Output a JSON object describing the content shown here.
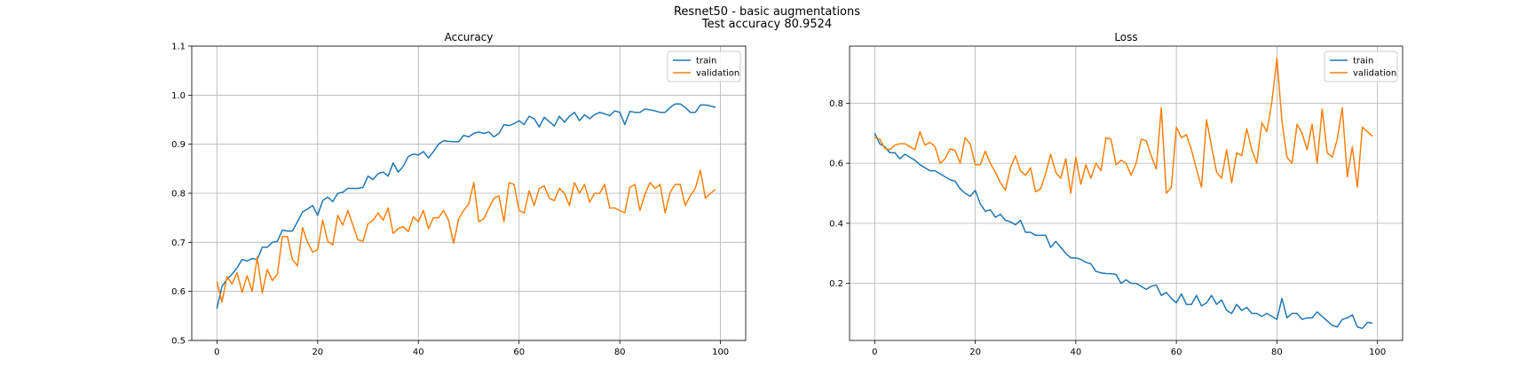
{
  "figure": {
    "suptitle_line1": "Resnet50 - basic augmentations",
    "suptitle_line2": "Test accuracy 80.9524"
  },
  "colors": {
    "train": "#1f77b4",
    "validation": "#ff7f0e",
    "grid": "#b0b0b0"
  },
  "chart_data": [
    {
      "type": "line",
      "title": "Accuracy",
      "xlabel": "",
      "ylabel": "",
      "xlim": [
        -5,
        105
      ],
      "ylim": [
        0.5,
        1.1
      ],
      "xticks": [
        0,
        20,
        40,
        60,
        80,
        100
      ],
      "yticks": [
        0.5,
        0.6,
        0.7,
        0.8,
        0.9,
        1.0,
        1.1
      ],
      "ytick_labels": [
        "0.5",
        "0.6",
        "0.7",
        "0.8",
        "0.9",
        "1.0",
        "1.1"
      ],
      "grid": true,
      "legend": "top-right",
      "x": [
        0,
        1,
        2,
        3,
        4,
        5,
        6,
        7,
        8,
        9,
        10,
        11,
        12,
        13,
        14,
        15,
        16,
        17,
        18,
        19,
        20,
        21,
        22,
        23,
        24,
        25,
        26,
        27,
        28,
        29,
        30,
        31,
        32,
        33,
        34,
        35,
        36,
        37,
        38,
        39,
        40,
        41,
        42,
        43,
        44,
        45,
        46,
        47,
        48,
        49,
        50,
        51,
        52,
        53,
        54,
        55,
        56,
        57,
        58,
        59,
        60,
        61,
        62,
        63,
        64,
        65,
        66,
        67,
        68,
        69,
        70,
        71,
        72,
        73,
        74,
        75,
        76,
        77,
        78,
        79,
        80,
        81,
        82,
        83,
        84,
        85,
        86,
        87,
        88,
        89,
        90,
        91,
        92,
        93,
        94,
        95,
        96,
        97,
        98,
        99
      ],
      "series": [
        {
          "name": "train",
          "values": [
            0.565,
            0.61,
            0.625,
            0.635,
            0.648,
            0.665,
            0.662,
            0.667,
            0.665,
            0.69,
            0.69,
            0.7,
            0.702,
            0.725,
            0.723,
            0.723,
            0.742,
            0.762,
            0.768,
            0.775,
            0.755,
            0.785,
            0.792,
            0.783,
            0.8,
            0.802,
            0.81,
            0.81,
            0.81,
            0.812,
            0.835,
            0.828,
            0.84,
            0.843,
            0.835,
            0.862,
            0.843,
            0.855,
            0.875,
            0.88,
            0.878,
            0.885,
            0.872,
            0.885,
            0.9,
            0.907,
            0.906,
            0.905,
            0.905,
            0.918,
            0.915,
            0.922,
            0.925,
            0.922,
            0.925,
            0.915,
            0.922,
            0.94,
            0.938,
            0.942,
            0.948,
            0.94,
            0.957,
            0.952,
            0.935,
            0.955,
            0.946,
            0.937,
            0.957,
            0.945,
            0.957,
            0.965,
            0.948,
            0.96,
            0.952,
            0.96,
            0.965,
            0.962,
            0.958,
            0.968,
            0.965,
            0.94,
            0.967,
            0.965,
            0.965,
            0.972,
            0.97,
            0.968,
            0.965,
            0.965,
            0.975,
            0.982,
            0.982,
            0.975,
            0.965,
            0.965,
            0.98,
            0.98,
            0.978,
            0.975
          ]
        },
        {
          "name": "validation",
          "values": [
            0.62,
            0.578,
            0.63,
            0.615,
            0.638,
            0.598,
            0.632,
            0.6,
            0.67,
            0.597,
            0.645,
            0.622,
            0.635,
            0.712,
            0.712,
            0.665,
            0.652,
            0.73,
            0.7,
            0.68,
            0.685,
            0.745,
            0.702,
            0.695,
            0.755,
            0.735,
            0.765,
            0.735,
            0.705,
            0.702,
            0.738,
            0.745,
            0.76,
            0.745,
            0.77,
            0.718,
            0.728,
            0.732,
            0.722,
            0.752,
            0.742,
            0.765,
            0.728,
            0.75,
            0.75,
            0.765,
            0.745,
            0.698,
            0.748,
            0.765,
            0.778,
            0.822,
            0.742,
            0.748,
            0.77,
            0.79,
            0.795,
            0.742,
            0.822,
            0.818,
            0.765,
            0.76,
            0.805,
            0.775,
            0.81,
            0.815,
            0.79,
            0.785,
            0.81,
            0.8,
            0.775,
            0.822,
            0.8,
            0.818,
            0.782,
            0.8,
            0.8,
            0.818,
            0.77,
            0.77,
            0.765,
            0.76,
            0.812,
            0.818,
            0.765,
            0.798,
            0.822,
            0.81,
            0.818,
            0.76,
            0.802,
            0.818,
            0.818,
            0.775,
            0.795,
            0.81,
            0.847,
            0.79,
            0.8,
            0.808
          ]
        }
      ]
    },
    {
      "type": "line",
      "title": "Loss",
      "xlabel": "",
      "ylabel": "",
      "xlim": [
        -5,
        105
      ],
      "ylim": [
        0.01,
        0.99
      ],
      "xticks": [
        0,
        20,
        40,
        60,
        80,
        100
      ],
      "yticks": [
        0.2,
        0.4,
        0.6,
        0.8
      ],
      "ytick_labels": [
        "0.2",
        "0.4",
        "0.6",
        "0.8"
      ],
      "grid": true,
      "legend": "top-right",
      "x": [
        0,
        1,
        2,
        3,
        4,
        5,
        6,
        7,
        8,
        9,
        10,
        11,
        12,
        13,
        14,
        15,
        16,
        17,
        18,
        19,
        20,
        21,
        22,
        23,
        24,
        25,
        26,
        27,
        28,
        29,
        30,
        31,
        32,
        33,
        34,
        35,
        36,
        37,
        38,
        39,
        40,
        41,
        42,
        43,
        44,
        45,
        46,
        47,
        48,
        49,
        50,
        51,
        52,
        53,
        54,
        55,
        56,
        57,
        58,
        59,
        60,
        61,
        62,
        63,
        64,
        65,
        66,
        67,
        68,
        69,
        70,
        71,
        72,
        73,
        74,
        75,
        76,
        77,
        78,
        79,
        80,
        81,
        82,
        83,
        84,
        85,
        86,
        87,
        88,
        89,
        90,
        91,
        92,
        93,
        94,
        95,
        96,
        97,
        98,
        99
      ],
      "series": [
        {
          "name": "train",
          "values": [
            0.7,
            0.665,
            0.655,
            0.635,
            0.635,
            0.615,
            0.63,
            0.62,
            0.61,
            0.595,
            0.585,
            0.575,
            0.575,
            0.565,
            0.555,
            0.545,
            0.54,
            0.515,
            0.5,
            0.49,
            0.51,
            0.465,
            0.44,
            0.445,
            0.42,
            0.43,
            0.41,
            0.405,
            0.395,
            0.41,
            0.37,
            0.37,
            0.36,
            0.36,
            0.36,
            0.32,
            0.34,
            0.32,
            0.3,
            0.285,
            0.285,
            0.28,
            0.27,
            0.265,
            0.24,
            0.235,
            0.233,
            0.232,
            0.23,
            0.2,
            0.212,
            0.2,
            0.2,
            0.19,
            0.18,
            0.19,
            0.195,
            0.16,
            0.17,
            0.15,
            0.135,
            0.165,
            0.13,
            0.13,
            0.16,
            0.125,
            0.135,
            0.16,
            0.13,
            0.145,
            0.11,
            0.1,
            0.13,
            0.11,
            0.12,
            0.1,
            0.1,
            0.09,
            0.1,
            0.09,
            0.08,
            0.15,
            0.085,
            0.1,
            0.1,
            0.08,
            0.085,
            0.085,
            0.105,
            0.09,
            0.075,
            0.06,
            0.055,
            0.08,
            0.085,
            0.095,
            0.055,
            0.05,
            0.07,
            0.068
          ]
        },
        {
          "name": "validation",
          "values": [
            0.685,
            0.68,
            0.65,
            0.645,
            0.66,
            0.665,
            0.665,
            0.655,
            0.645,
            0.705,
            0.66,
            0.67,
            0.655,
            0.6,
            0.615,
            0.648,
            0.642,
            0.6,
            0.685,
            0.665,
            0.595,
            0.595,
            0.64,
            0.6,
            0.57,
            0.535,
            0.51,
            0.585,
            0.625,
            0.575,
            0.56,
            0.585,
            0.505,
            0.515,
            0.565,
            0.63,
            0.57,
            0.55,
            0.615,
            0.5,
            0.62,
            0.53,
            0.595,
            0.55,
            0.6,
            0.575,
            0.685,
            0.68,
            0.595,
            0.61,
            0.6,
            0.56,
            0.6,
            0.68,
            0.675,
            0.625,
            0.58,
            0.785,
            0.5,
            0.52,
            0.72,
            0.685,
            0.695,
            0.645,
            0.58,
            0.52,
            0.745,
            0.655,
            0.57,
            0.55,
            0.645,
            0.535,
            0.635,
            0.625,
            0.715,
            0.645,
            0.6,
            0.735,
            0.705,
            0.805,
            0.95,
            0.74,
            0.62,
            0.6,
            0.73,
            0.7,
            0.645,
            0.73,
            0.6,
            0.78,
            0.635,
            0.62,
            0.68,
            0.785,
            0.555,
            0.655,
            0.52,
            0.72,
            0.705,
            0.69
          ]
        }
      ]
    }
  ]
}
